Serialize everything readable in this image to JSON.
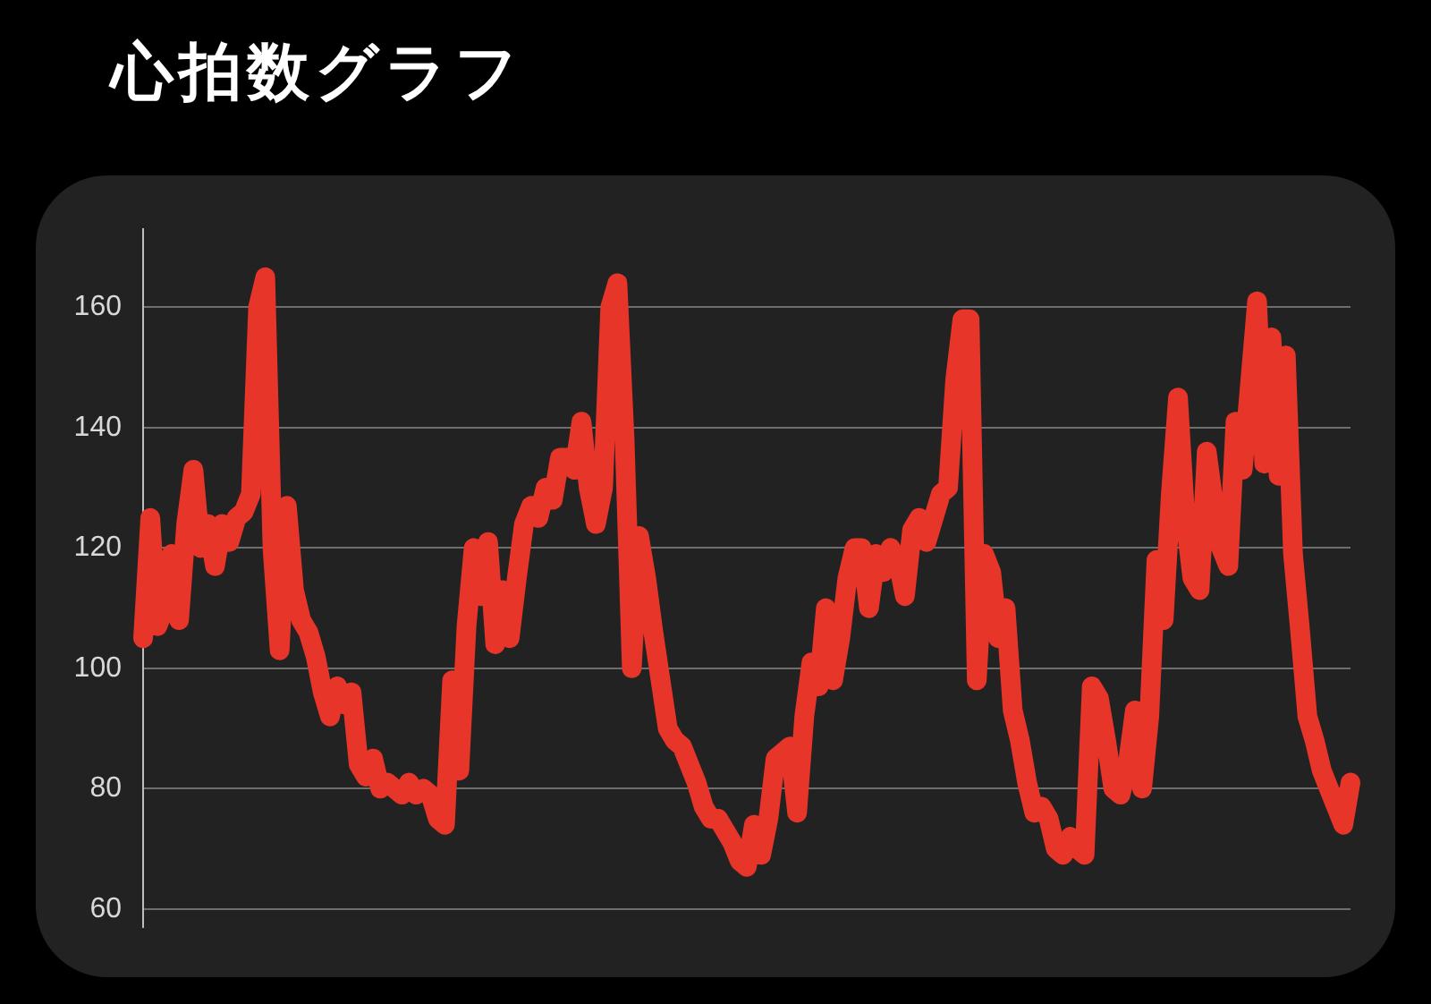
{
  "chart_data": {
    "type": "line",
    "title": "心拍数グラフ",
    "categories": [
      null,
      null,
      null,
      null,
      null,
      null,
      null,
      null,
      null,
      null,
      null,
      null,
      null,
      null,
      null,
      null,
      null,
      null,
      null,
      null,
      null,
      null,
      null,
      null,
      null,
      null,
      null,
      null,
      null,
      null,
      null,
      null,
      null,
      null,
      null,
      null,
      null,
      null,
      null,
      null,
      null,
      null,
      null,
      null,
      null,
      null,
      null,
      null,
      null,
      null,
      null,
      null,
      null,
      null,
      null,
      null,
      null,
      null,
      null,
      null,
      null,
      null,
      null,
      null,
      null,
      null,
      null,
      null,
      null,
      null,
      null,
      null,
      null,
      null,
      null,
      null,
      null,
      null,
      null,
      null,
      null,
      null,
      null,
      null,
      null,
      null,
      null,
      null,
      null,
      null,
      null,
      null,
      null,
      null,
      null,
      null,
      null,
      null,
      null,
      null,
      null,
      null,
      null,
      null,
      null,
      null,
      null,
      null,
      null,
      null,
      null,
      null,
      null,
      null,
      null,
      null,
      null,
      null,
      null,
      null,
      null,
      null,
      null,
      null,
      null,
      null,
      null,
      null,
      null,
      null,
      null,
      null,
      null,
      null,
      null,
      null,
      null,
      null,
      null,
      null,
      null,
      null,
      null,
      null,
      null,
      null,
      null,
      null,
      null,
      null,
      null,
      null,
      null,
      null,
      null,
      null,
      null,
      null,
      null,
      null,
      null,
      null,
      null,
      null,
      null,
      null,
      null,
      null,
      null
    ],
    "series": [
      {
        "color": "#e8352a",
        "values": [
          105,
          125,
          107,
          110,
          119,
          108,
          124,
          133,
          120,
          124,
          117,
          124,
          121,
          125,
          126,
          129,
          160,
          165,
          120,
          103,
          127,
          113,
          108,
          106,
          102,
          96,
          92,
          97,
          94,
          96,
          84,
          82,
          85,
          80,
          81,
          80,
          79,
          81,
          79,
          80,
          79,
          75,
          74,
          98,
          83,
          107,
          120,
          112,
          121,
          104,
          113,
          105,
          115,
          124,
          127,
          125,
          130,
          128,
          135,
          135,
          133,
          141,
          130,
          124,
          130,
          160,
          164,
          138,
          100,
          122,
          115,
          106,
          98,
          90,
          88,
          87,
          84,
          81,
          77,
          75,
          75,
          73,
          71,
          68,
          67,
          74,
          69,
          75,
          85,
          86,
          87,
          76,
          92,
          101,
          97,
          110,
          98,
          105,
          115,
          120,
          120,
          110,
          119,
          116,
          120,
          118,
          112,
          123,
          125,
          121,
          125,
          129,
          130,
          148,
          158,
          158,
          98,
          119,
          116,
          105,
          110,
          93,
          88,
          81,
          76,
          77,
          75,
          70,
          69,
          72,
          70,
          69,
          97,
          95,
          88,
          80,
          79,
          84,
          93,
          80,
          92,
          118,
          108,
          129,
          145,
          125,
          115,
          113,
          136,
          127,
          120,
          117,
          141,
          133,
          147,
          161,
          134,
          155,
          132,
          152,
          119,
          106,
          92,
          88,
          83,
          80,
          77,
          74,
          81
        ]
      }
    ],
    "ylim": [
      57,
      173
    ],
    "yticks": [
      60,
      80,
      100,
      120,
      140,
      160
    ],
    "grid": "y",
    "marker": "none",
    "line_style": "solid"
  }
}
